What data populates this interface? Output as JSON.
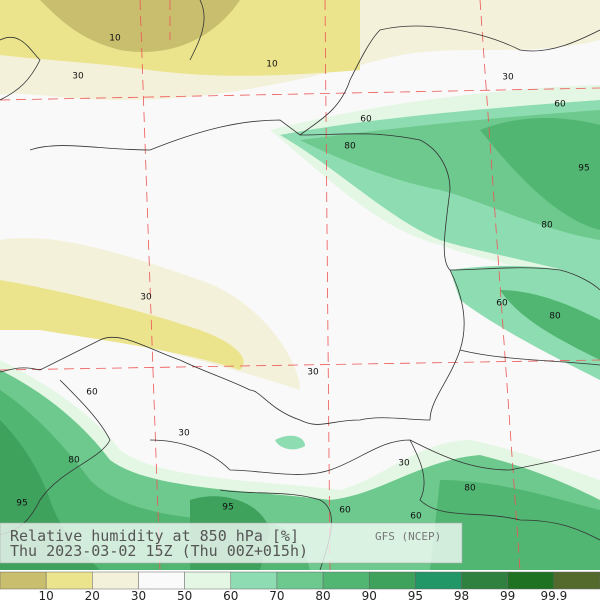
{
  "title": "Relative humidity at 850 hPa [%]",
  "subtitle": "Thu 2023-03-02 15Z (Thu 00Z+015h)",
  "source": "GFS (NCEP)",
  "contour_labels": [
    10,
    10,
    30,
    30,
    60,
    60,
    80,
    95,
    80,
    30,
    60,
    80,
    30,
    60,
    30,
    80,
    30,
    80,
    95,
    95,
    60,
    60
  ],
  "colorbar": {
    "colors": [
      "#c9bd6e",
      "#ebe48d",
      "#f4f1da",
      "#fafafa",
      "#e4f7e4",
      "#8edcb1",
      "#6dc98d",
      "#52b673",
      "#3ea15c",
      "#219768",
      "#30813f",
      "#1f7222",
      "#536a2c"
    ],
    "labels": [
      10,
      20,
      30,
      50,
      60,
      70,
      80,
      90,
      95,
      98,
      99,
      99.9
    ]
  }
}
